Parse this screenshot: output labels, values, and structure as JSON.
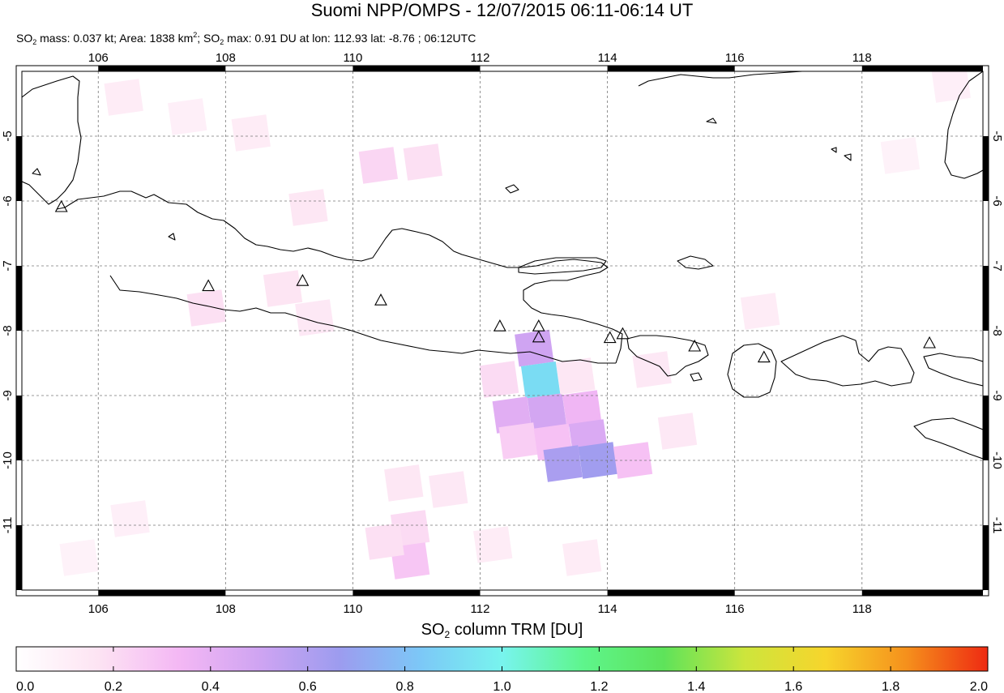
{
  "header": {
    "title": "Suomi NPP/OMPS - 12/07/2015 06:11-06:14 UT",
    "subtitle_parts": {
      "a": "SO",
      "a_sub": "2",
      "b": " mass: 0.037 kt; Area: 1838 km",
      "b_sup": "2",
      "c": "; SO",
      "c_sub": "2",
      "d": " max: 0.91 DU at lon: 112.93 lat: -8.76 ; 06:12UTC"
    }
  },
  "map": {
    "lon_ticks": [
      "106",
      "108",
      "110",
      "112",
      "114",
      "116",
      "118"
    ],
    "lat_ticks": [
      "-5",
      "-6",
      "-7",
      "-8",
      "-9",
      "-10",
      "-11"
    ],
    "lon_range": [
      104.8,
      119.9
    ],
    "lat_range": [
      -12.0,
      -4.0
    ],
    "grid": true,
    "coastline_color": "#000000",
    "volcano_marker": "triangle-icon",
    "volcanoes": [
      {
        "lon": 105.42,
        "lat": -6.1
      },
      {
        "lon": 107.73,
        "lat": -7.32
      },
      {
        "lon": 109.21,
        "lat": -7.24
      },
      {
        "lon": 110.44,
        "lat": -7.54
      },
      {
        "lon": 112.31,
        "lat": -7.94
      },
      {
        "lon": 112.92,
        "lat": -7.94
      },
      {
        "lon": 112.92,
        "lat": -8.11
      },
      {
        "lon": 114.04,
        "lat": -8.12
      },
      {
        "lon": 114.24,
        "lat": -8.06
      },
      {
        "lon": 115.37,
        "lat": -8.25
      },
      {
        "lon": 116.46,
        "lat": -8.42
      },
      {
        "lon": 119.06,
        "lat": -8.2
      }
    ],
    "so2_pixels": [
      {
        "lon": 112.85,
        "lat": -8.27,
        "du": 0.5
      },
      {
        "lon": 112.95,
        "lat": -8.76,
        "du": 0.91
      },
      {
        "lon": 112.5,
        "lat": -9.3,
        "du": 0.42
      },
      {
        "lon": 113.05,
        "lat": -9.25,
        "du": 0.48
      },
      {
        "lon": 113.6,
        "lat": -9.2,
        "du": 0.35
      },
      {
        "lon": 112.6,
        "lat": -9.7,
        "du": 0.25
      },
      {
        "lon": 113.15,
        "lat": -9.72,
        "du": 0.3
      },
      {
        "lon": 113.7,
        "lat": -9.65,
        "du": 0.45
      },
      {
        "lon": 113.3,
        "lat": -10.05,
        "du": 0.62
      },
      {
        "lon": 113.85,
        "lat": -10.0,
        "du": 0.65
      },
      {
        "lon": 114.4,
        "lat": -10.0,
        "du": 0.3
      },
      {
        "lon": 112.3,
        "lat": -8.75,
        "du": 0.2
      },
      {
        "lon": 113.5,
        "lat": -8.7,
        "du": 0.15
      },
      {
        "lon": 110.4,
        "lat": -5.45,
        "du": 0.22
      },
      {
        "lon": 111.1,
        "lat": -5.4,
        "du": 0.18
      },
      {
        "lon": 110.8,
        "lat": -10.35,
        "du": 0.15
      },
      {
        "lon": 110.9,
        "lat": -11.05,
        "du": 0.2
      },
      {
        "lon": 110.9,
        "lat": -11.55,
        "du": 0.28
      },
      {
        "lon": 110.5,
        "lat": -11.25,
        "du": 0.18
      },
      {
        "lon": 107.7,
        "lat": -7.65,
        "du": 0.18
      },
      {
        "lon": 108.9,
        "lat": -7.35,
        "du": 0.16
      },
      {
        "lon": 109.4,
        "lat": -7.8,
        "du": 0.14
      },
      {
        "lon": 109.3,
        "lat": -6.1,
        "du": 0.15
      },
      {
        "lon": 108.4,
        "lat": -4.95,
        "du": 0.12
      },
      {
        "lon": 106.4,
        "lat": -4.4,
        "du": 0.12
      },
      {
        "lon": 107.4,
        "lat": -4.7,
        "du": 0.1
      },
      {
        "lon": 116.4,
        "lat": -7.7,
        "du": 0.12
      },
      {
        "lon": 114.7,
        "lat": -8.6,
        "du": 0.14
      },
      {
        "lon": 115.1,
        "lat": -9.55,
        "du": 0.14
      },
      {
        "lon": 111.5,
        "lat": -10.45,
        "du": 0.14
      },
      {
        "lon": 112.2,
        "lat": -11.3,
        "du": 0.12
      },
      {
        "lon": 113.6,
        "lat": -11.5,
        "du": 0.12
      },
      {
        "lon": 119.4,
        "lat": -4.2,
        "du": 0.1
      },
      {
        "lon": 118.6,
        "lat": -5.3,
        "du": 0.08
      },
      {
        "lon": 106.5,
        "lat": -10.9,
        "du": 0.1
      },
      {
        "lon": 105.7,
        "lat": -11.5,
        "du": 0.08
      }
    ]
  },
  "colorbar": {
    "title_main": "SO",
    "title_sub": "2",
    "title_rest": " column TRM [DU]",
    "ticks": [
      "0.0",
      "0.2",
      "0.4",
      "0.6",
      "0.8",
      "1.0",
      "1.2",
      "1.4",
      "1.6",
      "1.8",
      "2.0"
    ],
    "range": [
      0.0,
      2.0
    ],
    "colors": [
      "#ffffff",
      "#fde4f3",
      "#f4b8f4",
      "#cfa4f2",
      "#9c9cef",
      "#7cc8f7",
      "#78f4ee",
      "#5ef58c",
      "#5ee35a",
      "#cde53c",
      "#f7d52c",
      "#f5901c",
      "#ee2a12"
    ]
  }
}
